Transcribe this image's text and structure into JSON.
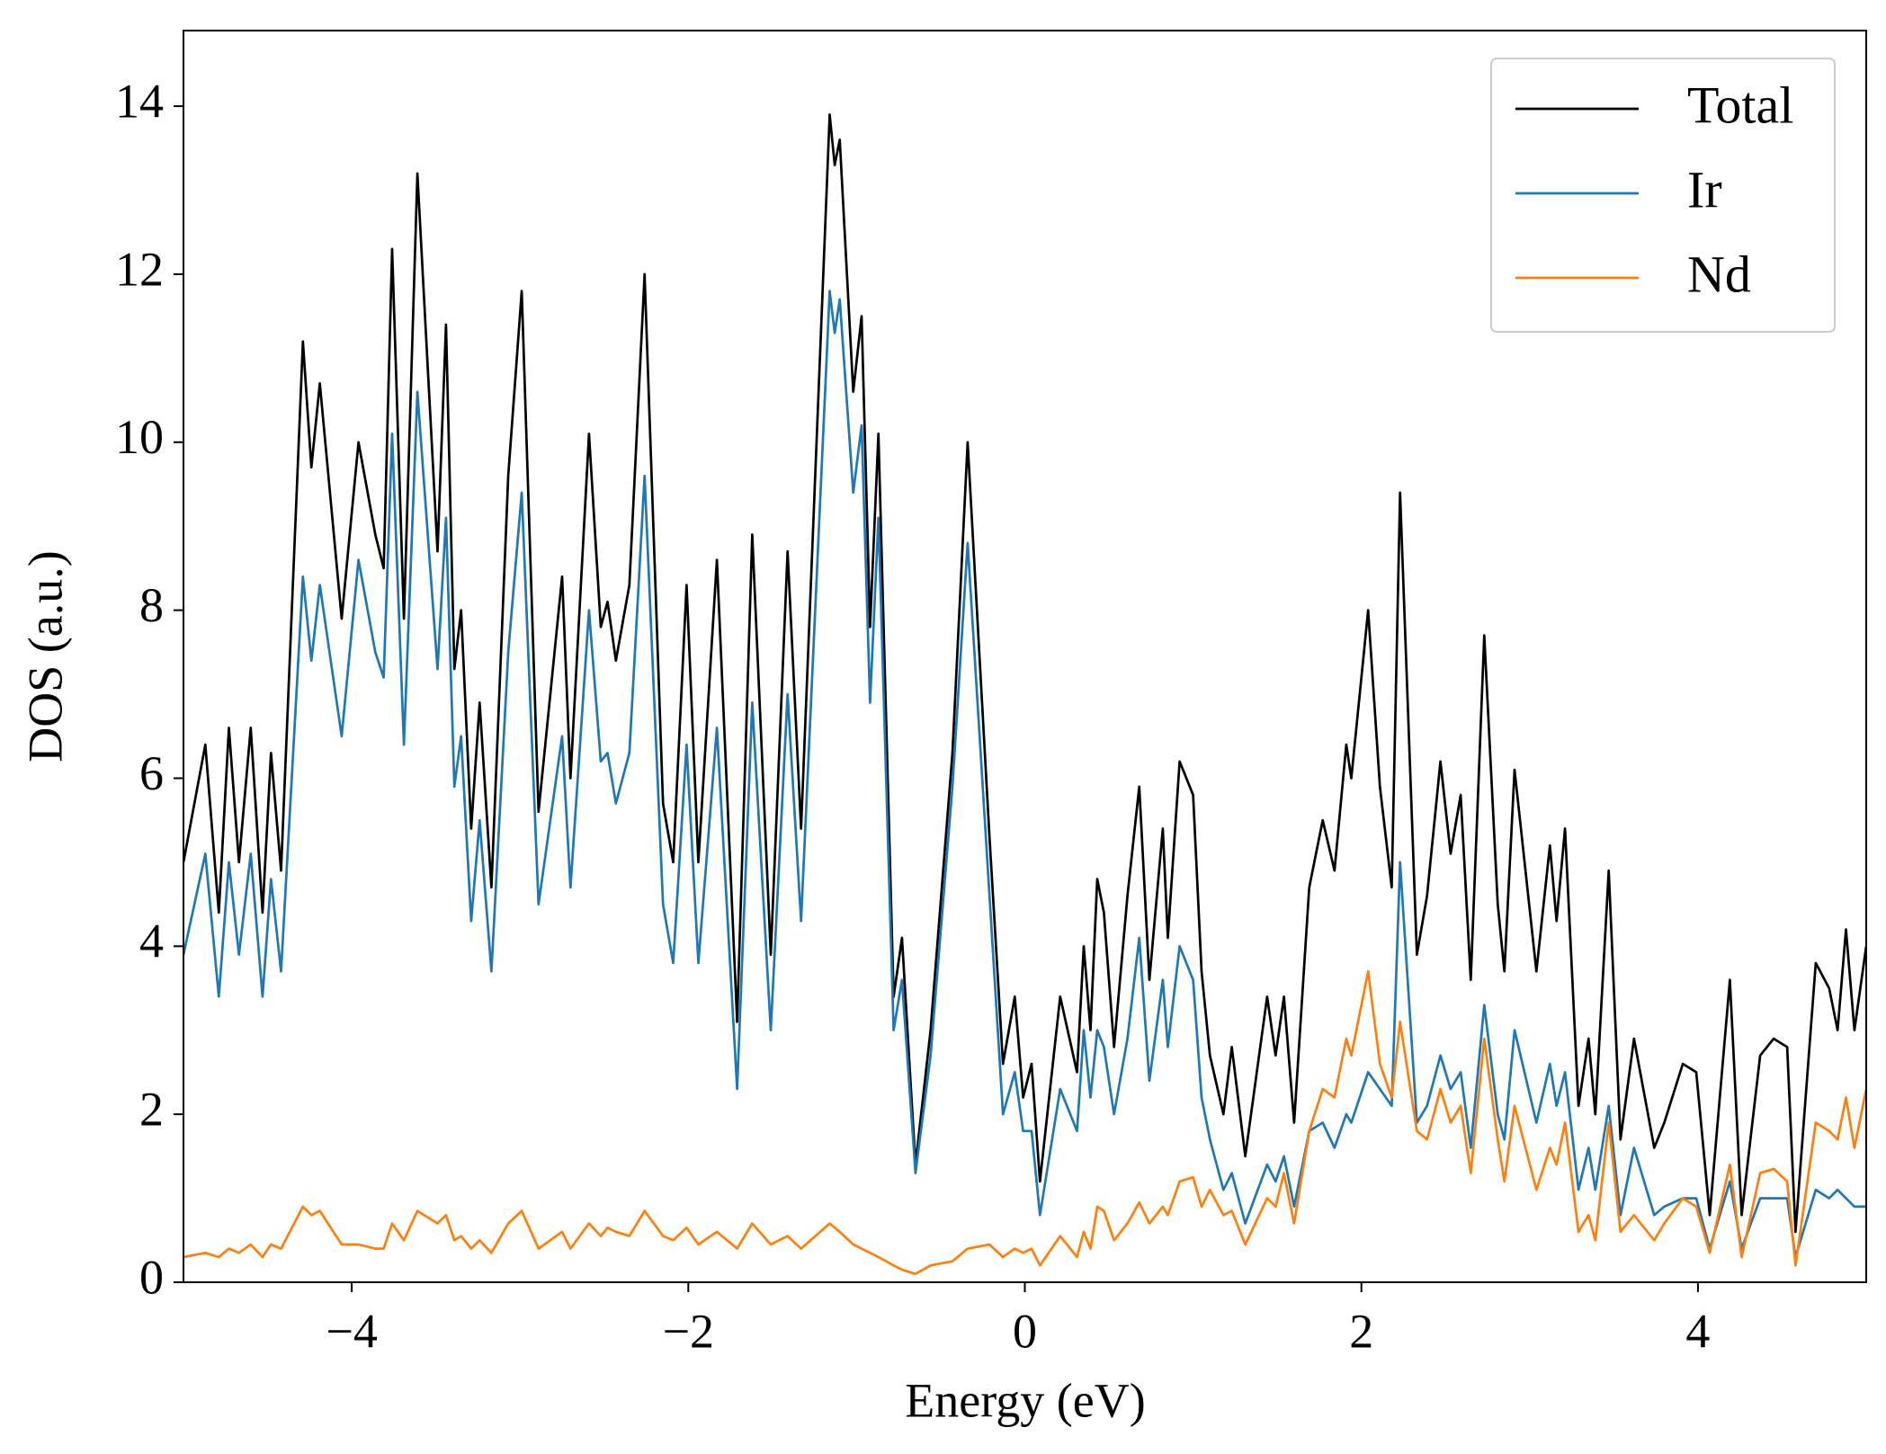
{
  "chart_data": {
    "type": "line",
    "xlabel": "Energy (eV)",
    "ylabel": "DOS (a.u.)",
    "xlim": [
      -5,
      5
    ],
    "ylim": [
      0,
      14.9
    ],
    "xticks": [
      {
        "value": -4,
        "label": "−4"
      },
      {
        "value": -2,
        "label": "−2"
      },
      0,
      2,
      4
    ],
    "yticks": [
      0,
      2,
      4,
      6,
      8,
      10,
      12,
      14
    ],
    "legend": "upper right",
    "x": [
      -5.0,
      -4.87,
      -4.79,
      -4.73,
      -4.67,
      -4.6,
      -4.53,
      -4.48,
      -4.42,
      -4.29,
      -4.24,
      -4.19,
      -4.06,
      -3.96,
      -3.86,
      -3.81,
      -3.76,
      -3.69,
      -3.61,
      -3.49,
      -3.44,
      -3.39,
      -3.35,
      -3.29,
      -3.24,
      -3.17,
      -3.07,
      -2.99,
      -2.89,
      -2.75,
      -2.7,
      -2.59,
      -2.52,
      -2.48,
      -2.43,
      -2.35,
      -2.26,
      -2.15,
      -2.09,
      -2.01,
      -1.94,
      -1.83,
      -1.71,
      -1.62,
      -1.51,
      -1.41,
      -1.33,
      -1.16,
      -1.13,
      -1.1,
      -1.02,
      -0.97,
      -0.92,
      -0.87,
      -0.78,
      -0.73,
      -0.65,
      -0.56,
      -0.43,
      -0.34,
      -0.21,
      -0.13,
      -0.06,
      -0.01,
      0.04,
      0.09,
      0.21,
      0.31,
      0.35,
      0.39,
      0.43,
      0.47,
      0.53,
      0.61,
      0.68,
      0.74,
      0.82,
      0.85,
      0.92,
      1.0,
      1.05,
      1.1,
      1.18,
      1.23,
      1.31,
      1.44,
      1.49,
      1.54,
      1.6,
      1.69,
      1.77,
      1.84,
      1.91,
      1.94,
      2.04,
      2.11,
      2.18,
      2.23,
      2.33,
      2.39,
      2.47,
      2.53,
      2.59,
      2.65,
      2.73,
      2.81,
      2.85,
      2.91,
      3.04,
      3.12,
      3.16,
      3.21,
      3.29,
      3.35,
      3.39,
      3.47,
      3.54,
      3.62,
      3.74,
      3.8,
      3.91,
      3.99,
      4.07,
      4.19,
      4.26,
      4.37,
      4.45,
      4.53,
      4.58,
      4.7,
      4.78,
      4.83,
      4.88,
      4.93,
      5.0
    ],
    "series": [
      {
        "name": "Total",
        "color": "#000000",
        "values": [
          5.0,
          6.4,
          4.4,
          6.6,
          5.0,
          6.6,
          4.4,
          6.3,
          4.9,
          11.2,
          9.7,
          10.7,
          7.9,
          10.0,
          8.9,
          8.5,
          12.3,
          7.9,
          13.2,
          8.7,
          11.4,
          7.3,
          8.0,
          5.4,
          6.9,
          4.7,
          9.6,
          11.8,
          5.6,
          8.4,
          6.0,
          10.1,
          7.8,
          8.1,
          7.4,
          8.3,
          12.0,
          5.7,
          5.0,
          8.3,
          5.0,
          8.6,
          3.1,
          8.9,
          3.9,
          8.7,
          5.4,
          13.9,
          13.3,
          13.6,
          10.6,
          11.5,
          7.8,
          10.1,
          3.4,
          4.1,
          1.4,
          3.0,
          6.3,
          10.0,
          5.3,
          2.6,
          3.4,
          2.2,
          2.6,
          1.2,
          3.4,
          2.5,
          4.0,
          3.0,
          4.8,
          4.4,
          2.8,
          4.6,
          5.9,
          3.6,
          5.4,
          4.1,
          6.2,
          5.8,
          3.7,
          2.7,
          2.0,
          2.8,
          1.5,
          3.4,
          2.7,
          3.4,
          1.9,
          4.7,
          5.5,
          4.9,
          6.4,
          6.0,
          8.0,
          5.9,
          4.7,
          9.4,
          3.9,
          4.6,
          6.2,
          5.1,
          5.8,
          3.6,
          7.7,
          4.5,
          3.7,
          6.1,
          3.7,
          5.2,
          4.3,
          5.4,
          2.1,
          2.9,
          2.0,
          4.9,
          1.7,
          2.9,
          1.6,
          1.9,
          2.6,
          2.5,
          0.8,
          3.6,
          0.8,
          2.7,
          2.9,
          2.8,
          0.6,
          3.8,
          3.5,
          3.0,
          4.2,
          3.0,
          4.0
        ]
      },
      {
        "name": "Ir",
        "color": "#1f77b4",
        "values": [
          3.9,
          5.1,
          3.4,
          5.0,
          3.9,
          5.1,
          3.4,
          4.8,
          3.7,
          8.4,
          7.4,
          8.3,
          6.5,
          8.6,
          7.5,
          7.2,
          10.1,
          6.4,
          10.6,
          7.3,
          9.1,
          5.9,
          6.5,
          4.3,
          5.5,
          3.7,
          7.5,
          9.4,
          4.5,
          6.5,
          4.7,
          8.0,
          6.2,
          6.3,
          5.7,
          6.3,
          9.6,
          4.5,
          3.8,
          6.4,
          3.8,
          6.6,
          2.3,
          6.9,
          3.0,
          7.0,
          4.3,
          11.8,
          11.3,
          11.7,
          9.4,
          10.2,
          6.9,
          9.1,
          3.0,
          3.6,
          1.3,
          2.7,
          5.9,
          8.8,
          4.6,
          2.0,
          2.5,
          1.8,
          1.8,
          0.8,
          2.3,
          1.8,
          3.0,
          2.2,
          3.0,
          2.8,
          2.0,
          2.9,
          4.1,
          2.4,
          3.6,
          2.8,
          4.0,
          3.6,
          2.2,
          1.7,
          1.1,
          1.3,
          0.7,
          1.4,
          1.2,
          1.5,
          0.9,
          1.8,
          1.9,
          1.6,
          2.0,
          1.9,
          2.5,
          2.3,
          2.1,
          5.0,
          1.9,
          2.1,
          2.7,
          2.3,
          2.5,
          1.6,
          3.3,
          2.0,
          1.7,
          3.0,
          1.9,
          2.6,
          2.1,
          2.5,
          1.1,
          1.6,
          1.1,
          2.1,
          0.8,
          1.6,
          0.8,
          0.9,
          1.0,
          1.0,
          0.4,
          1.2,
          0.4,
          1.0,
          1.0,
          1.0,
          0.3,
          1.1,
          1.0,
          1.1,
          1.0,
          0.9,
          0.9
        ]
      },
      {
        "name": "Nd",
        "color": "#ff7f0e",
        "values": [
          0.3,
          0.35,
          0.3,
          0.4,
          0.35,
          0.45,
          0.3,
          0.45,
          0.4,
          0.9,
          0.8,
          0.85,
          0.45,
          0.45,
          0.4,
          0.4,
          0.7,
          0.5,
          0.85,
          0.7,
          0.8,
          0.5,
          0.55,
          0.4,
          0.5,
          0.35,
          0.7,
          0.85,
          0.4,
          0.6,
          0.4,
          0.7,
          0.55,
          0.65,
          0.6,
          0.55,
          0.85,
          0.55,
          0.5,
          0.65,
          0.45,
          0.6,
          0.4,
          0.7,
          0.45,
          0.55,
          0.4,
          0.7,
          0.65,
          0.6,
          0.45,
          0.4,
          0.35,
          0.3,
          0.2,
          0.15,
          0.1,
          0.2,
          0.25,
          0.4,
          0.45,
          0.3,
          0.4,
          0.35,
          0.4,
          0.2,
          0.55,
          0.3,
          0.6,
          0.4,
          0.9,
          0.85,
          0.5,
          0.7,
          0.95,
          0.7,
          0.9,
          0.8,
          1.2,
          1.25,
          0.9,
          1.1,
          0.8,
          0.85,
          0.45,
          1.0,
          0.9,
          1.3,
          0.7,
          1.8,
          2.3,
          2.2,
          2.9,
          2.7,
          3.7,
          2.6,
          2.2,
          3.1,
          1.8,
          1.7,
          2.3,
          1.9,
          2.1,
          1.3,
          2.9,
          1.7,
          1.2,
          2.1,
          1.1,
          1.6,
          1.4,
          1.9,
          0.6,
          0.8,
          0.5,
          1.9,
          0.6,
          0.8,
          0.5,
          0.7,
          1.0,
          0.9,
          0.35,
          1.4,
          0.3,
          1.3,
          1.35,
          1.2,
          0.2,
          1.9,
          1.8,
          1.7,
          2.2,
          1.6,
          2.3
        ]
      }
    ]
  }
}
